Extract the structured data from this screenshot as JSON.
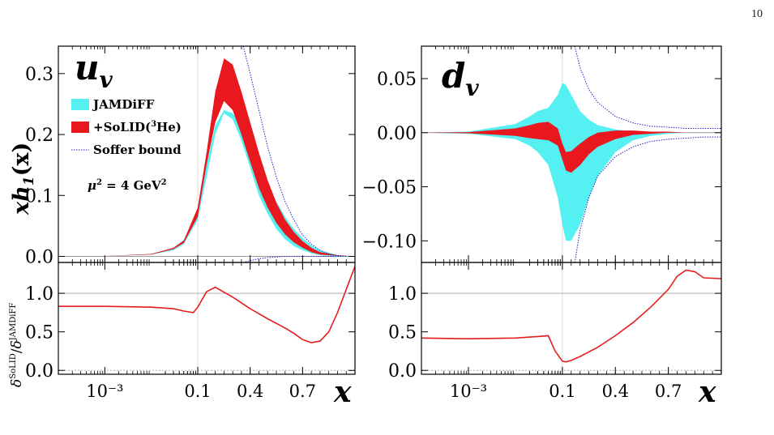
{
  "page_number": "10",
  "colors": {
    "jamdiff": "#55f0f2",
    "solid": "#e8181e",
    "soffer": "#2222cc",
    "ratio_line": "#e51e1e",
    "refline": "#b0b0b0",
    "frame": "#000000"
  },
  "legend": {
    "jamdiff": "JAMDiFF",
    "solid_prefix": "+SoLID(",
    "solid_sup": "3",
    "solid_suffix": "He)",
    "soffer": "Soffer bound"
  },
  "annotation": {
    "scale_prefix": "μ",
    "scale_sup": "2",
    "scale_mid": " = 4 GeV",
    "scale_sup2": "2"
  },
  "labels": {
    "ylabel_top_main": "xh",
    "ylabel_top_sub": "1",
    "ylabel_top_arg": "(x)",
    "ylabel_bottom_num_sup": "SoLID",
    "ylabel_bottom_den_sup": "JAMDiFF",
    "delta": "δ",
    "xlabel": "x",
    "uv_main": "u",
    "uv_sub": "v",
    "dv_main": "d",
    "dv_sub": "v"
  },
  "chart_data": [
    {
      "panel": "u_v main",
      "type": "area",
      "xscale": "mixed log-linear",
      "xticks": [
        "10⁻³",
        "0.1",
        "0.4",
        "0.7"
      ],
      "yticks": [
        "0.0",
        "0.1",
        "0.2",
        "0.3"
      ],
      "ylim": [
        -0.01,
        0.345
      ],
      "series": [
        {
          "name": "JAMDiFF",
          "x": [
            0.0001,
            0.001,
            0.01,
            0.03,
            0.05,
            0.1,
            0.15,
            0.2,
            0.25,
            0.3,
            0.35,
            0.4,
            0.45,
            0.5,
            0.55,
            0.6,
            0.65,
            0.7,
            0.75,
            0.8,
            0.9,
            1.0
          ],
          "lower": [
            0,
            0.0003,
            0.003,
            0.01,
            0.02,
            0.06,
            0.13,
            0.2,
            0.235,
            0.225,
            0.19,
            0.145,
            0.1,
            0.07,
            0.045,
            0.028,
            0.017,
            0.01,
            0.005,
            0.002,
            0,
            0
          ],
          "upper": [
            0,
            0.0005,
            0.004,
            0.014,
            0.027,
            0.075,
            0.15,
            0.215,
            0.24,
            0.235,
            0.215,
            0.185,
            0.15,
            0.12,
            0.09,
            0.065,
            0.045,
            0.03,
            0.018,
            0.01,
            0.002,
            0
          ]
        },
        {
          "name": "+SoLID(³He)",
          "x": [
            0.0001,
            0.001,
            0.01,
            0.03,
            0.05,
            0.1,
            0.15,
            0.2,
            0.25,
            0.3,
            0.35,
            0.4,
            0.45,
            0.5,
            0.55,
            0.6,
            0.65,
            0.7,
            0.75,
            0.8,
            0.9,
            1.0
          ],
          "lower": [
            0,
            0.0003,
            0.003,
            0.012,
            0.022,
            0.065,
            0.15,
            0.22,
            0.255,
            0.24,
            0.2,
            0.155,
            0.112,
            0.08,
            0.055,
            0.036,
            0.023,
            0.014,
            0.007,
            0.003,
            0.001,
            0
          ],
          "upper": [
            0,
            0.0005,
            0.004,
            0.014,
            0.026,
            0.08,
            0.17,
            0.27,
            0.325,
            0.315,
            0.27,
            0.22,
            0.17,
            0.125,
            0.088,
            0.06,
            0.04,
            0.025,
            0.014,
            0.007,
            0.002,
            0
          ]
        },
        {
          "name": "Soffer bound",
          "x": [
            0.36,
            0.4,
            0.45,
            0.5,
            0.55,
            0.6,
            0.65,
            0.7,
            0.75,
            0.8,
            0.85,
            0.9,
            0.95
          ],
          "upper": [
            0.345,
            0.3,
            0.24,
            0.18,
            0.13,
            0.09,
            0.06,
            0.035,
            0.02,
            0.01,
            0.004,
            0.001,
            0
          ],
          "lower": [
            -0.01,
            -0.007,
            -0.004,
            -0.002,
            -0.001,
            0,
            0,
            0,
            0,
            0,
            0,
            0,
            0
          ]
        }
      ]
    },
    {
      "panel": "d_v main",
      "type": "area",
      "xscale": "mixed log-linear",
      "xticks": [
        "10⁻³",
        "0.1",
        "0.4",
        "0.7"
      ],
      "yticks": [
        "0.05",
        "0.00",
        "−0.05",
        "−0.10"
      ],
      "ylim": [
        -0.12,
        0.08
      ],
      "series": [
        {
          "name": "JAMDiFF",
          "x": [
            0.0001,
            0.001,
            0.01,
            0.02,
            0.03,
            0.05,
            0.08,
            0.1,
            0.12,
            0.15,
            0.2,
            0.25,
            0.3,
            0.4,
            0.5,
            0.6,
            0.7,
            0.8,
            0.9,
            1.0
          ],
          "lower": [
            0,
            -0.001,
            -0.006,
            -0.012,
            -0.018,
            -0.03,
            -0.06,
            -0.085,
            -0.1,
            -0.1,
            -0.085,
            -0.06,
            -0.04,
            -0.018,
            -0.007,
            -0.003,
            -0.001,
            0,
            0,
            0
          ],
          "upper": [
            0,
            0.001,
            0.008,
            0.015,
            0.02,
            0.023,
            0.035,
            0.046,
            0.044,
            0.035,
            0.02,
            0.012,
            0.007,
            0.003,
            0.001,
            0,
            0,
            0,
            0,
            0
          ]
        },
        {
          "name": "+SoLID(³He)",
          "x": [
            0.0001,
            0.001,
            0.01,
            0.02,
            0.03,
            0.05,
            0.08,
            0.1,
            0.12,
            0.15,
            0.2,
            0.25,
            0.3,
            0.4,
            0.5,
            0.6,
            0.7,
            0.8,
            0.9,
            1.0
          ],
          "lower": [
            0,
            -0.0005,
            -0.003,
            -0.005,
            -0.006,
            -0.007,
            -0.012,
            -0.025,
            -0.035,
            -0.037,
            -0.03,
            -0.02,
            -0.013,
            -0.006,
            -0.002,
            -0.001,
            0,
            0,
            0,
            0
          ],
          "upper": [
            0,
            0.0005,
            0.004,
            0.007,
            0.009,
            0.01,
            0.004,
            -0.01,
            -0.018,
            -0.017,
            -0.01,
            -0.004,
            0,
            0.002,
            0.002,
            0.001,
            0.001,
            0,
            0,
            0
          ]
        },
        {
          "name": "Soffer bound",
          "x": [
            0.17,
            0.2,
            0.25,
            0.3,
            0.4,
            0.5,
            0.6,
            0.7,
            0.8,
            0.9,
            1.0
          ],
          "upper": [
            0.08,
            0.06,
            0.04,
            0.028,
            0.015,
            0.009,
            0.006,
            0.005,
            0.004,
            0.004,
            0.004
          ],
          "lower": [
            -0.12,
            -0.09,
            -0.06,
            -0.04,
            -0.022,
            -0.013,
            -0.008,
            -0.006,
            -0.005,
            -0.004,
            -0.004
          ]
        }
      ]
    },
    {
      "panel": "u_v ratio",
      "type": "line",
      "xticks": [
        "10⁻³",
        "0.1",
        "0.4",
        "0.7"
      ],
      "yticks": [
        "0.0",
        "0.5",
        "1.0"
      ],
      "ylim": [
        -0.05,
        1.4
      ],
      "x": [
        0.0001,
        0.001,
        0.01,
        0.03,
        0.05,
        0.08,
        0.1,
        0.15,
        0.2,
        0.3,
        0.4,
        0.5,
        0.6,
        0.65,
        0.7,
        0.75,
        0.8,
        0.85,
        0.9,
        0.95,
        1.0
      ],
      "values": [
        0.83,
        0.83,
        0.82,
        0.8,
        0.77,
        0.75,
        0.82,
        1.02,
        1.08,
        0.95,
        0.8,
        0.67,
        0.55,
        0.48,
        0.4,
        0.36,
        0.38,
        0.5,
        0.75,
        1.05,
        1.35
      ]
    },
    {
      "panel": "d_v ratio",
      "type": "line",
      "xticks": [
        "10⁻³",
        "0.1",
        "0.4",
        "0.7"
      ],
      "yticks": [
        "0.0",
        "0.5",
        "1.0"
      ],
      "ylim": [
        -0.05,
        1.4
      ],
      "x": [
        0.0001,
        0.001,
        0.01,
        0.03,
        0.05,
        0.07,
        0.1,
        0.12,
        0.15,
        0.2,
        0.3,
        0.4,
        0.5,
        0.6,
        0.7,
        0.75,
        0.8,
        0.85,
        0.9,
        1.0
      ],
      "values": [
        0.42,
        0.41,
        0.42,
        0.44,
        0.45,
        0.25,
        0.12,
        0.11,
        0.13,
        0.18,
        0.3,
        0.45,
        0.62,
        0.82,
        1.05,
        1.22,
        1.3,
        1.28,
        1.2,
        1.19
      ]
    }
  ]
}
